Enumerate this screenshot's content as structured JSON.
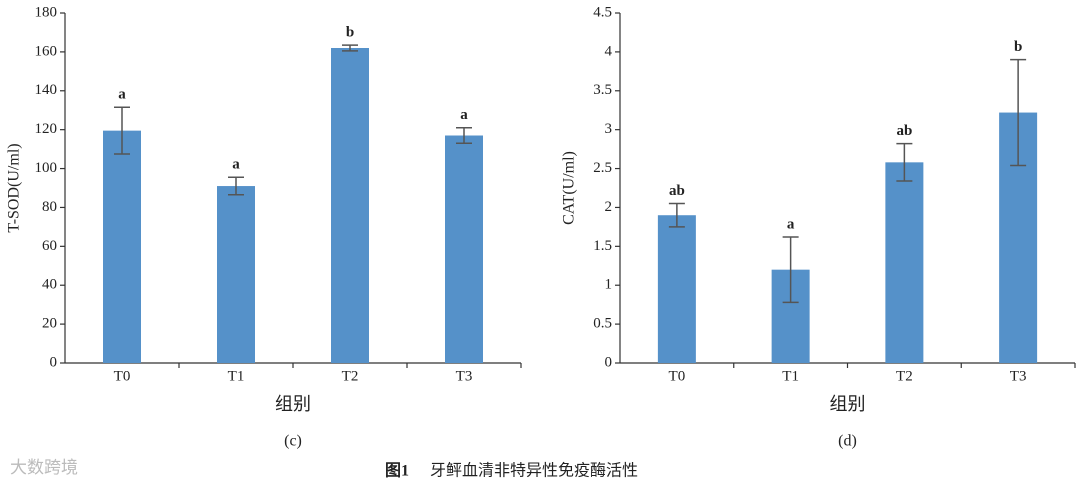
{
  "chart_data": [
    {
      "type": "bar",
      "panel_label": "(c)",
      "y_label": "T-SOD(U/ml)",
      "x_label": "组别",
      "categories": [
        "T0",
        "T1",
        "T2",
        "T3"
      ],
      "values": [
        119.5,
        91,
        162,
        117
      ],
      "errors": [
        12,
        4.5,
        1.5,
        4
      ],
      "significance_labels": [
        "a",
        "a",
        "b",
        "a"
      ],
      "color": "#5591c9",
      "ylim": [
        0,
        180
      ],
      "yticks": [
        0,
        20,
        40,
        60,
        80,
        100,
        120,
        140,
        160,
        180
      ]
    },
    {
      "type": "bar",
      "panel_label": "(d)",
      "y_label": "CAT(U/ml)",
      "x_label": "组别",
      "categories": [
        "T0",
        "T1",
        "T2",
        "T3"
      ],
      "values": [
        1.9,
        1.2,
        2.58,
        3.22
      ],
      "errors": [
        0.15,
        0.42,
        0.24,
        0.68
      ],
      "significance_labels": [
        "ab",
        "a",
        "ab",
        "b"
      ],
      "color": "#5591c9",
      "ylim": [
        0,
        4.5
      ],
      "yticks": [
        0,
        0.5,
        1,
        1.5,
        2,
        2.5,
        3,
        3.5,
        4,
        4.5
      ]
    }
  ],
  "caption": {
    "number": "图1",
    "text": "牙鲆血清非特异性免疫酶活性"
  },
  "watermark": "大数跨境"
}
